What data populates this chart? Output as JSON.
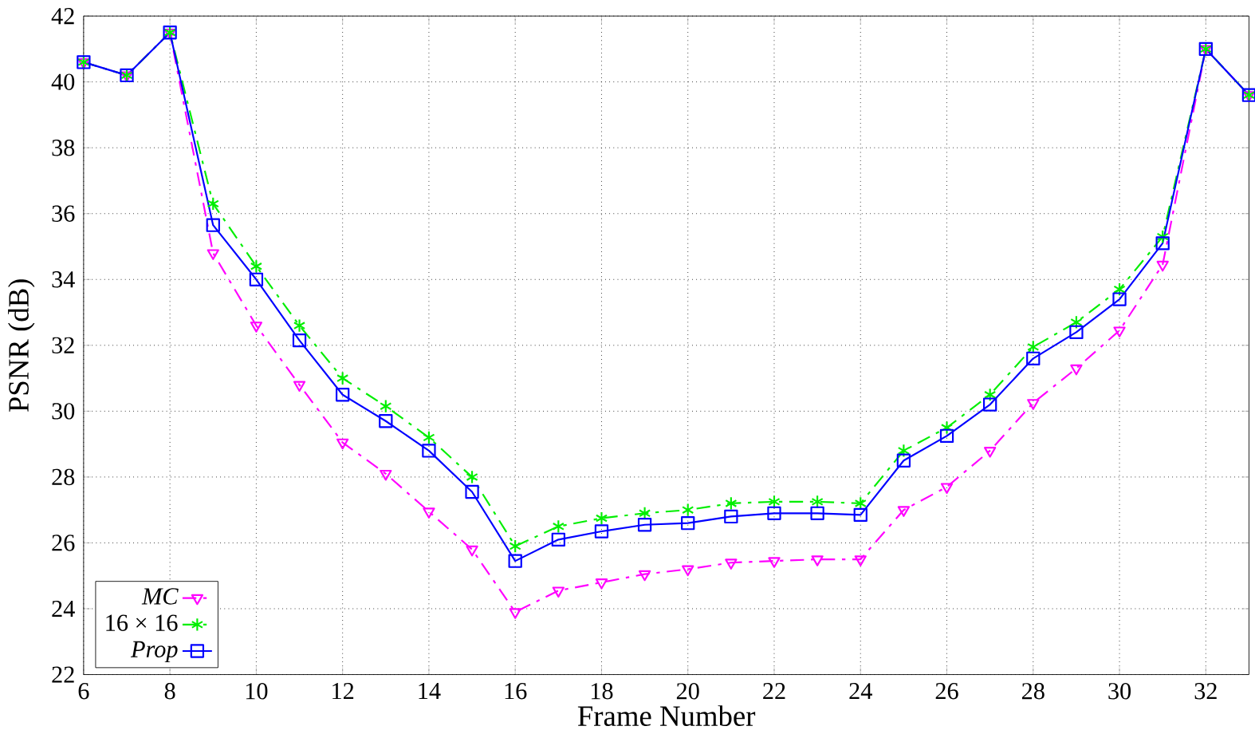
{
  "chart_data": {
    "type": "line",
    "xlabel": "Frame Number",
    "ylabel": "PSNR (dB)",
    "x": [
      6,
      7,
      8,
      9,
      10,
      11,
      12,
      13,
      14,
      15,
      16,
      17,
      18,
      19,
      20,
      21,
      22,
      23,
      24,
      25,
      26,
      27,
      28,
      29,
      30,
      31,
      32,
      33
    ],
    "xlim": [
      6,
      33
    ],
    "ylim": [
      22,
      42
    ],
    "xticks": [
      6,
      8,
      10,
      12,
      14,
      16,
      18,
      20,
      22,
      24,
      26,
      28,
      30,
      32
    ],
    "yticks": [
      22,
      24,
      26,
      28,
      30,
      32,
      34,
      36,
      38,
      40,
      42
    ],
    "grid": true,
    "legend": "bottom left",
    "series": [
      {
        "name": "MC",
        "color": "#ff00ff",
        "marker": "triangle",
        "line_style": "dashed",
        "values": [
          40.6,
          40.2,
          41.5,
          34.8,
          32.6,
          30.8,
          29.05,
          28.1,
          26.95,
          25.8,
          23.9,
          24.55,
          24.8,
          25.05,
          25.2,
          25.4,
          25.45,
          25.5,
          25.5,
          27.0,
          27.7,
          28.8,
          30.25,
          31.3,
          32.45,
          34.45,
          41.0,
          39.6
        ]
      },
      {
        "name": "16 × 16",
        "color": "#00ee00",
        "marker": "cross",
        "line_style": "dashed",
        "values": [
          40.6,
          40.2,
          41.5,
          36.3,
          34.4,
          32.6,
          31.0,
          30.15,
          29.2,
          28.0,
          25.9,
          26.5,
          26.75,
          26.9,
          27.0,
          27.2,
          27.25,
          27.25,
          27.2,
          28.8,
          29.5,
          30.5,
          31.95,
          32.7,
          33.7,
          35.3,
          41.0,
          39.6
        ]
      },
      {
        "name": "Prop",
        "color": "#0000ff",
        "marker": "square",
        "line_style": "solid",
        "values": [
          40.6,
          40.2,
          41.5,
          35.65,
          34.0,
          32.15,
          30.5,
          29.7,
          28.8,
          27.55,
          25.45,
          26.1,
          26.35,
          26.55,
          26.6,
          26.8,
          26.9,
          26.9,
          26.85,
          28.5,
          29.25,
          30.2,
          31.6,
          32.4,
          33.4,
          35.1,
          41.0,
          39.6
        ]
      }
    ]
  }
}
